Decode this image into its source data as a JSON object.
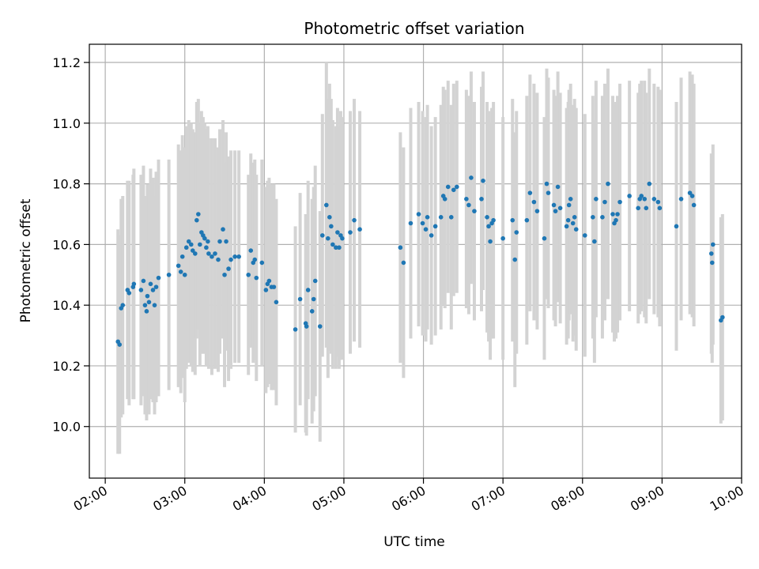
{
  "chart_data": {
    "type": "scatter",
    "title": "Photometric offset variation",
    "xlabel": "UTC time",
    "ylabel": "Photometric offset",
    "x_unit": "UTC time of day (hours)",
    "xlim": [
      1.8,
      10.0
    ],
    "ylim": [
      9.83,
      11.26
    ],
    "x_ticks": [
      {
        "value": 2,
        "label": "02:00"
      },
      {
        "value": 3,
        "label": "03:00"
      },
      {
        "value": 4,
        "label": "04:00"
      },
      {
        "value": 5,
        "label": "05:00"
      },
      {
        "value": 6,
        "label": "06:00"
      },
      {
        "value": 7,
        "label": "07:00"
      },
      {
        "value": 8,
        "label": "08:00"
      },
      {
        "value": 9,
        "label": "09:00"
      },
      {
        "value": 10,
        "label": "10:00"
      }
    ],
    "y_ticks": [
      {
        "value": 10.0,
        "label": "10.0"
      },
      {
        "value": 10.2,
        "label": "10.2"
      },
      {
        "value": 10.4,
        "label": "10.4"
      },
      {
        "value": 10.6,
        "label": "10.6"
      },
      {
        "value": 10.8,
        "label": "10.8"
      },
      {
        "value": 11.0,
        "label": "11.0"
      },
      {
        "value": 11.2,
        "label": "11.2"
      }
    ],
    "grid": true,
    "colors": {
      "points": "#1f77b4",
      "error_bars": "#d3d3d3",
      "grid": "#b0b0b0"
    },
    "points": [
      [
        2.16,
        10.28,
        0.37
      ],
      [
        2.18,
        10.27,
        0.36
      ],
      [
        2.2,
        10.39,
        0.36
      ],
      [
        2.22,
        10.4,
        0.36
      ],
      [
        2.28,
        10.45,
        0.36
      ],
      [
        2.3,
        10.44,
        0.37
      ],
      [
        2.35,
        10.46,
        0.37
      ],
      [
        2.36,
        10.47,
        0.38
      ],
      [
        2.45,
        10.45,
        0.38
      ],
      [
        2.48,
        10.48,
        0.38
      ],
      [
        2.5,
        10.4,
        0.36
      ],
      [
        2.52,
        10.38,
        0.36
      ],
      [
        2.53,
        10.43,
        0.37
      ],
      [
        2.55,
        10.41,
        0.37
      ],
      [
        2.57,
        10.47,
        0.38
      ],
      [
        2.6,
        10.45,
        0.37
      ],
      [
        2.62,
        10.4,
        0.36
      ],
      [
        2.64,
        10.46,
        0.38
      ],
      [
        2.67,
        10.49,
        0.39
      ],
      [
        2.8,
        10.5,
        0.38
      ],
      [
        2.92,
        10.53,
        0.4
      ],
      [
        2.95,
        10.51,
        0.4
      ],
      [
        2.97,
        10.56,
        0.4
      ],
      [
        3.0,
        10.5,
        0.42
      ],
      [
        3.02,
        10.59,
        0.4
      ],
      [
        3.05,
        10.61,
        0.4
      ],
      [
        3.08,
        10.6,
        0.4
      ],
      [
        3.1,
        10.58,
        0.4
      ],
      [
        3.13,
        10.57,
        0.4
      ],
      [
        3.15,
        10.68,
        0.39
      ],
      [
        3.17,
        10.7,
        0.38
      ],
      [
        3.19,
        10.6,
        0.4
      ],
      [
        3.21,
        10.64,
        0.4
      ],
      [
        3.23,
        10.63,
        0.39
      ],
      [
        3.25,
        10.62,
        0.38
      ],
      [
        3.27,
        10.59,
        0.39
      ],
      [
        3.29,
        10.61,
        0.38
      ],
      [
        3.3,
        10.57,
        0.38
      ],
      [
        3.34,
        10.56,
        0.39
      ],
      [
        3.38,
        10.57,
        0.38
      ],
      [
        3.42,
        10.55,
        0.37
      ],
      [
        3.44,
        10.61,
        0.37
      ],
      [
        3.48,
        10.65,
        0.36
      ],
      [
        3.5,
        10.5,
        0.37
      ],
      [
        3.52,
        10.61,
        0.36
      ],
      [
        3.55,
        10.52,
        0.37
      ],
      [
        3.58,
        10.55,
        0.36
      ],
      [
        3.63,
        10.56,
        0.35
      ],
      [
        3.68,
        10.56,
        0.35
      ],
      [
        3.8,
        10.5,
        0.33
      ],
      [
        3.83,
        10.58,
        0.32
      ],
      [
        3.86,
        10.54,
        0.33
      ],
      [
        3.88,
        10.55,
        0.33
      ],
      [
        3.9,
        10.49,
        0.34
      ],
      [
        3.97,
        10.54,
        0.34
      ],
      [
        4.02,
        10.45,
        0.34
      ],
      [
        4.04,
        10.47,
        0.34
      ],
      [
        4.06,
        10.48,
        0.34
      ],
      [
        4.09,
        10.46,
        0.34
      ],
      [
        4.12,
        10.46,
        0.34
      ],
      [
        4.15,
        10.41,
        0.34
      ],
      [
        4.39,
        10.32,
        0.34
      ],
      [
        4.45,
        10.42,
        0.35
      ],
      [
        4.52,
        10.34,
        0.36
      ],
      [
        4.53,
        10.33,
        0.36
      ],
      [
        4.55,
        10.45,
        0.36
      ],
      [
        4.6,
        10.38,
        0.37
      ],
      [
        4.62,
        10.42,
        0.37
      ],
      [
        4.64,
        10.48,
        0.38
      ],
      [
        4.7,
        10.33,
        0.38
      ],
      [
        4.73,
        10.63,
        0.4
      ],
      [
        4.78,
        10.73,
        0.47
      ],
      [
        4.8,
        10.62,
        0.46
      ],
      [
        4.82,
        10.69,
        0.44
      ],
      [
        4.84,
        10.66,
        0.42
      ],
      [
        4.86,
        10.6,
        0.41
      ],
      [
        4.9,
        10.59,
        0.4
      ],
      [
        4.92,
        10.64,
        0.41
      ],
      [
        4.94,
        10.59,
        0.4
      ],
      [
        4.96,
        10.63,
        0.41
      ],
      [
        4.98,
        10.62,
        0.4
      ],
      [
        5.08,
        10.64,
        0.4
      ],
      [
        5.13,
        10.68,
        0.4
      ],
      [
        5.2,
        10.65,
        0.39
      ],
      [
        5.71,
        10.59,
        0.38
      ],
      [
        5.75,
        10.54,
        0.38
      ],
      [
        5.84,
        10.67,
        0.38
      ],
      [
        5.94,
        10.7,
        0.37
      ],
      [
        5.99,
        10.67,
        0.37
      ],
      [
        6.03,
        10.65,
        0.37
      ],
      [
        6.05,
        10.69,
        0.37
      ],
      [
        6.1,
        10.63,
        0.36
      ],
      [
        6.15,
        10.66,
        0.36
      ],
      [
        6.22,
        10.69,
        0.37
      ],
      [
        6.25,
        10.76,
        0.36
      ],
      [
        6.27,
        10.75,
        0.36
      ],
      [
        6.31,
        10.79,
        0.35
      ],
      [
        6.35,
        10.69,
        0.37
      ],
      [
        6.38,
        10.78,
        0.35
      ],
      [
        6.42,
        10.79,
        0.35
      ],
      [
        6.54,
        10.75,
        0.36
      ],
      [
        6.57,
        10.73,
        0.36
      ],
      [
        6.6,
        10.82,
        0.35
      ],
      [
        6.64,
        10.71,
        0.36
      ],
      [
        6.73,
        10.75,
        0.37
      ],
      [
        6.75,
        10.81,
        0.36
      ],
      [
        6.8,
        10.69,
        0.38
      ],
      [
        6.82,
        10.66,
        0.38
      ],
      [
        6.84,
        10.61,
        0.39
      ],
      [
        6.86,
        10.67,
        0.38
      ],
      [
        6.88,
        10.68,
        0.39
      ],
      [
        7.0,
        10.62,
        0.4
      ],
      [
        7.12,
        10.68,
        0.4
      ],
      [
        7.15,
        10.55,
        0.42
      ],
      [
        7.17,
        10.64,
        0.4
      ],
      [
        7.3,
        10.68,
        0.41
      ],
      [
        7.34,
        10.77,
        0.39
      ],
      [
        7.39,
        10.74,
        0.39
      ],
      [
        7.43,
        10.71,
        0.39
      ],
      [
        7.52,
        10.62,
        0.4
      ],
      [
        7.55,
        10.8,
        0.38
      ],
      [
        7.57,
        10.77,
        0.38
      ],
      [
        7.64,
        10.73,
        0.38
      ],
      [
        7.66,
        10.71,
        0.38
      ],
      [
        7.69,
        10.79,
        0.38
      ],
      [
        7.72,
        10.72,
        0.38
      ],
      [
        7.8,
        10.66,
        0.39
      ],
      [
        7.82,
        10.68,
        0.39
      ],
      [
        7.83,
        10.73,
        0.38
      ],
      [
        7.85,
        10.75,
        0.38
      ],
      [
        7.88,
        10.67,
        0.39
      ],
      [
        7.9,
        10.69,
        0.39
      ],
      [
        7.92,
        10.65,
        0.4
      ],
      [
        8.03,
        10.63,
        0.4
      ],
      [
        8.13,
        10.69,
        0.4
      ],
      [
        8.15,
        10.61,
        0.4
      ],
      [
        8.17,
        10.75,
        0.39
      ],
      [
        8.25,
        10.69,
        0.4
      ],
      [
        8.28,
        10.74,
        0.39
      ],
      [
        8.32,
        10.8,
        0.38
      ],
      [
        8.38,
        10.7,
        0.39
      ],
      [
        8.4,
        10.67,
        0.39
      ],
      [
        8.42,
        10.68,
        0.39
      ],
      [
        8.44,
        10.7,
        0.39
      ],
      [
        8.47,
        10.74,
        0.39
      ],
      [
        8.59,
        10.76,
        0.38
      ],
      [
        8.7,
        10.72,
        0.38
      ],
      [
        8.72,
        10.75,
        0.38
      ],
      [
        8.74,
        10.76,
        0.38
      ],
      [
        8.78,
        10.75,
        0.39
      ],
      [
        8.8,
        10.72,
        0.38
      ],
      [
        8.84,
        10.8,
        0.38
      ],
      [
        8.9,
        10.75,
        0.38
      ],
      [
        8.95,
        10.74,
        0.38
      ],
      [
        8.97,
        10.72,
        0.39
      ],
      [
        9.18,
        10.66,
        0.41
      ],
      [
        9.24,
        10.75,
        0.4
      ],
      [
        9.35,
        10.77,
        0.4
      ],
      [
        9.38,
        10.76,
        0.4
      ],
      [
        9.4,
        10.73,
        0.4
      ],
      [
        9.62,
        10.57,
        0.33
      ],
      [
        9.63,
        10.54,
        0.33
      ],
      [
        9.64,
        10.6,
        0.33
      ],
      [
        9.74,
        10.35,
        0.34
      ],
      [
        9.76,
        10.36,
        0.34
      ]
    ]
  }
}
